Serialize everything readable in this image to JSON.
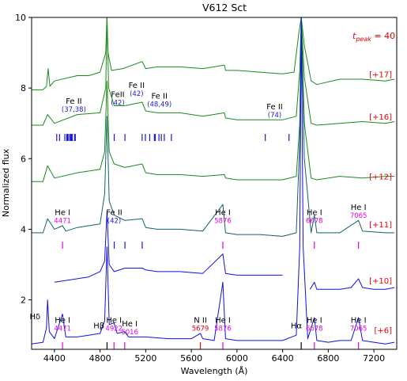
{
  "chart_data": {
    "type": "line",
    "title": "V612 Sct",
    "xlabel": "Wavelength (Å)",
    "ylabel": "Normalized flux",
    "xlim": [
      4200,
      7400
    ],
    "ylim": [
      0.6,
      10
    ],
    "xticks": [
      4400,
      4800,
      5200,
      5600,
      6000,
      6400,
      6800,
      7200
    ],
    "yticks": [
      2,
      4,
      6,
      8,
      10
    ],
    "grid": false,
    "annotation_tpeak": {
      "label": "t",
      "sub": "peak",
      "text": " = 40",
      "color": "#e8000b"
    },
    "colors": {
      "green": "#1a8a1a",
      "teal": "#15606a",
      "blue": "#1010e0",
      "magenta": "#e600e6",
      "navy": "#1a1acc",
      "red": "#e8000b"
    },
    "series": [
      {
        "offset_label": "[+17]",
        "color": "#1a8a1a",
        "x": [
          4200,
          4300,
          4330,
          4345,
          4360,
          4400,
          4600,
          4700,
          4800,
          4850,
          4860,
          4870,
          4900,
          5000,
          5169,
          5200,
          5300,
          5500,
          5700,
          5890,
          5900,
          6000,
          6200,
          6400,
          6500,
          6540,
          6563,
          6590,
          6650,
          6700,
          6900,
          7100,
          7300,
          7380
        ],
        "y": [
          7.95,
          7.95,
          8.05,
          8.55,
          8.05,
          8.2,
          8.35,
          8.35,
          8.45,
          9.0,
          10.0,
          9.0,
          8.5,
          8.55,
          8.75,
          8.55,
          8.6,
          8.6,
          8.55,
          8.65,
          8.5,
          8.5,
          8.45,
          8.4,
          8.45,
          9.5,
          10.0,
          9.2,
          8.2,
          8.1,
          8.25,
          8.25,
          8.2,
          8.25
        ]
      },
      {
        "offset_label": "[+16]",
        "color": "#1a8a1a",
        "x": [
          4200,
          4300,
          4340,
          4400,
          4600,
          4800,
          4850,
          4861,
          4875,
          4924,
          5018,
          5169,
          5200,
          5300,
          5500,
          5700,
          5890,
          5900,
          6000,
          6200,
          6400,
          6520,
          6550,
          6563,
          6590,
          6650,
          6700,
          6900,
          7100,
          7300,
          7380
        ],
        "y": [
          6.95,
          6.95,
          7.25,
          7.0,
          7.25,
          7.3,
          8.0,
          10.0,
          8.0,
          7.5,
          7.5,
          7.6,
          7.35,
          7.3,
          7.3,
          7.2,
          7.3,
          7.15,
          7.1,
          7.1,
          7.1,
          7.2,
          8.5,
          10.0,
          8.3,
          7.0,
          6.95,
          7.0,
          7.05,
          7.0,
          7.05
        ]
      },
      {
        "offset_label": "[+12]",
        "color": "#1a8a1a",
        "x": [
          4200,
          4300,
          4340,
          4400,
          4600,
          4800,
          4840,
          4861,
          4880,
          4924,
          5018,
          5169,
          5200,
          5300,
          5500,
          5700,
          5890,
          5900,
          6000,
          6200,
          6400,
          6520,
          6550,
          6563,
          6590,
          6650,
          6700,
          6900,
          7100,
          7300,
          7380
        ],
        "y": [
          5.35,
          5.35,
          5.8,
          5.45,
          5.6,
          5.7,
          6.2,
          8.2,
          6.2,
          5.85,
          5.75,
          5.85,
          5.6,
          5.55,
          5.55,
          5.5,
          5.55,
          5.45,
          5.4,
          5.4,
          5.4,
          5.5,
          7.0,
          10.0,
          7.0,
          5.45,
          5.4,
          5.5,
          5.45,
          5.5,
          5.5
        ]
      },
      {
        "offset_label": "[+11]",
        "color": "#15606a",
        "x": [
          4200,
          4300,
          4340,
          4400,
          4471,
          4500,
          4600,
          4800,
          4840,
          4861,
          4880,
          4924,
          5018,
          5169,
          5200,
          5300,
          5500,
          5700,
          5876,
          5900,
          6000,
          6200,
          6400,
          6520,
          6550,
          6563,
          6590,
          6650,
          6678,
          6700,
          6900,
          7065,
          7100,
          7300,
          7380
        ],
        "y": [
          3.9,
          3.9,
          4.3,
          4.0,
          4.1,
          3.95,
          4.05,
          4.15,
          5.0,
          7.2,
          4.8,
          4.4,
          4.25,
          4.3,
          4.05,
          4.0,
          4.0,
          3.95,
          4.7,
          3.9,
          3.85,
          3.85,
          3.8,
          3.9,
          6.5,
          10.0,
          6.0,
          3.9,
          4.4,
          3.9,
          3.9,
          4.25,
          3.95,
          3.9,
          3.9
        ]
      },
      {
        "offset_label": "[+10]",
        "color": "#1010e0",
        "x": [
          4400,
          4500,
          4600,
          4700,
          4800,
          4840,
          4861,
          4880,
          4924,
          5018,
          5169,
          5200,
          5300,
          5500,
          5700,
          5876,
          5900,
          6000,
          6200,
          6400
        ],
        "y": [
          2.5,
          2.55,
          2.6,
          2.65,
          2.8,
          3.1,
          4.5,
          3.0,
          2.8,
          2.9,
          2.9,
          2.85,
          2.8,
          2.8,
          2.75,
          3.3,
          2.75,
          2.7,
          2.7,
          2.7
        ]
      },
      {
        "offset_label": "[+10]",
        "color": "#1010e0",
        "x": [
          6640,
          6678,
          6700,
          6800,
          6900,
          7000,
          7065,
          7100,
          7200,
          7300,
          7380
        ],
        "y": [
          2.3,
          2.5,
          2.3,
          2.3,
          2.3,
          2.35,
          2.6,
          2.35,
          2.3,
          2.3,
          2.35
        ]
      },
      {
        "offset_label": "[+6]",
        "color": "#1010e0",
        "x": [
          4200,
          4300,
          4330,
          4340,
          4355,
          4400,
          4471,
          4500,
          4600,
          4700,
          4800,
          4840,
          4861,
          4880,
          4922,
          4950,
          5016,
          5050,
          5200,
          5400,
          5600,
          5679,
          5700,
          5800,
          5876,
          5900,
          6000,
          6200,
          6400,
          6520,
          6550,
          6563,
          6580,
          6620,
          6678,
          6700,
          6800,
          6900,
          7000,
          7065,
          7100,
          7200,
          7300,
          7380
        ],
        "y": [
          0.75,
          0.8,
          1.2,
          2.0,
          1.1,
          0.9,
          1.6,
          0.95,
          0.95,
          1.0,
          1.05,
          1.4,
          3.5,
          1.3,
          1.35,
          1.05,
          1.1,
          0.95,
          0.95,
          0.9,
          0.9,
          1.05,
          0.9,
          0.85,
          2.5,
          0.9,
          0.85,
          0.85,
          0.85,
          1.0,
          3.5,
          10.0,
          3.5,
          0.9,
          1.5,
          0.85,
          0.8,
          0.85,
          0.85,
          1.5,
          0.85,
          0.8,
          0.75,
          0.8
        ]
      }
    ],
    "offset_labels": [
      {
        "text": "[+17]",
        "y": 8.4
      },
      {
        "text": "[+16]",
        "y": 7.2
      },
      {
        "text": "[+12]",
        "y": 5.5
      },
      {
        "text": "[+11]",
        "y": 4.15
      },
      {
        "text": "[+10]",
        "y": 2.55
      },
      {
        "text": "[+6]",
        "y": 1.15
      }
    ],
    "line_labels": [
      {
        "ion": "Fe II",
        "mult": "(37,38)",
        "x": 4570,
        "y": 7.55,
        "ion_color": "#000000",
        "mult_color": "#1a1acc"
      },
      {
        "ion": "FeII",
        "mult": "(42)",
        "x": 4955,
        "y": 7.75,
        "ion_color": "#000000",
        "mult_color": "#1a1acc"
      },
      {
        "ion": "Fe II",
        "mult": "(42)",
        "x": 5120,
        "y": 8.0,
        "ion_color": "#000000",
        "mult_color": "#1a1acc"
      },
      {
        "ion": "Fe II",
        "mult": "(48,49)",
        "x": 5320,
        "y": 7.7,
        "ion_color": "#000000",
        "mult_color": "#1a1acc"
      },
      {
        "ion": "Fe II",
        "mult": "(74)",
        "x": 6330,
        "y": 7.4,
        "ion_color": "#000000",
        "mult_color": "#1a1acc"
      },
      {
        "ion": "He I",
        "mult": "4471",
        "x": 4471,
        "y": 4.4,
        "ion_color": "#000000",
        "mult_color": "#e600e6"
      },
      {
        "ion": "Fe II",
        "mult": "(42)",
        "x": 4924,
        "y": 4.4,
        "ion_color": "#000000",
        "mult_color": "#1a1acc"
      },
      {
        "ion": "He I",
        "mult": "5876",
        "x": 5876,
        "y": 4.4,
        "ion_color": "#000000",
        "mult_color": "#e600e6"
      },
      {
        "ion": "He I",
        "mult": "6678",
        "x": 6678,
        "y": 4.4,
        "ion_color": "#000000",
        "mult_color": "#e600e6"
      },
      {
        "ion": "He I",
        "mult": "7065",
        "x": 7065,
        "y": 4.55,
        "ion_color": "#000000",
        "mult_color": "#e600e6"
      },
      {
        "ion": "Hδ",
        "mult": "",
        "x": 4230,
        "y": 1.45,
        "ion_color": "#000000",
        "mult_color": "#000000"
      },
      {
        "ion": "He I",
        "mult": "4471",
        "x": 4471,
        "y": 1.35,
        "ion_color": "#000000",
        "mult_color": "#e600e6"
      },
      {
        "ion": "Hβ",
        "mult": "",
        "x": 4790,
        "y": 1.2,
        "ion_color": "#000000",
        "mult_color": "#000000"
      },
      {
        "ion": "He I",
        "mult": "4922",
        "x": 4922,
        "y": 1.35,
        "ion_color": "#000000",
        "mult_color": "#e600e6"
      },
      {
        "ion": "He I",
        "mult": "5016",
        "x": 5060,
        "y": 1.25,
        "ion_color": "#000000",
        "mult_color": "#e600e6"
      },
      {
        "ion": "N II",
        "mult": "5679",
        "x": 5679,
        "y": 1.35,
        "ion_color": "#000000",
        "mult_color": "#e8000b"
      },
      {
        "ion": "He I",
        "mult": "5876",
        "x": 5876,
        "y": 1.35,
        "ion_color": "#000000",
        "mult_color": "#e600e6"
      },
      {
        "ion": "Hα",
        "mult": "",
        "x": 6520,
        "y": 1.2,
        "ion_color": "#000000",
        "mult_color": "#000000"
      },
      {
        "ion": "He I",
        "mult": "6678",
        "x": 6678,
        "y": 1.35,
        "ion_color": "#000000",
        "mult_color": "#e600e6"
      },
      {
        "ion": "He I",
        "mult": "7065",
        "x": 7065,
        "y": 1.35,
        "ion_color": "#000000",
        "mult_color": "#e600e6"
      }
    ],
    "markers": [
      {
        "x": [
          4420,
          4445,
          4491,
          4508,
          4515,
          4520,
          4534,
          4541,
          4549,
          4556,
          4576,
          4583
        ],
        "y0": 6.7,
        "y1": 6.5,
        "color": "#1a1acc"
      },
      {
        "x": [
          4924,
          5018,
          5169,
          5197,
          5235,
          5276,
          5284,
          5316,
          5337,
          5363,
          5425
        ],
        "y0": 6.7,
        "y1": 6.5,
        "color": "#1a1acc"
      },
      {
        "x": [
          6248,
          6456
        ],
        "y0": 6.7,
        "y1": 6.5,
        "color": "#1a1acc"
      },
      {
        "x": [
          4471,
          5876,
          6678,
          7065
        ],
        "y0": 3.65,
        "y1": 3.45,
        "color": "#e600e6"
      },
      {
        "x": [
          4924,
          5018,
          5169
        ],
        "y0": 3.65,
        "y1": 3.45,
        "color": "#1a1acc"
      },
      {
        "x": [
          4471,
          4922,
          5016,
          5876,
          6678,
          7065
        ],
        "y0": 0.8,
        "y1": 0.6,
        "color": "#e600e6"
      },
      {
        "x": [
          5679
        ],
        "y0": 0.8,
        "y1": 0.6,
        "color": "#e8000b"
      },
      {
        "x": [
          4861,
          6563
        ],
        "y0": 0.8,
        "y1": 0.6,
        "color": "#000000"
      }
    ]
  }
}
